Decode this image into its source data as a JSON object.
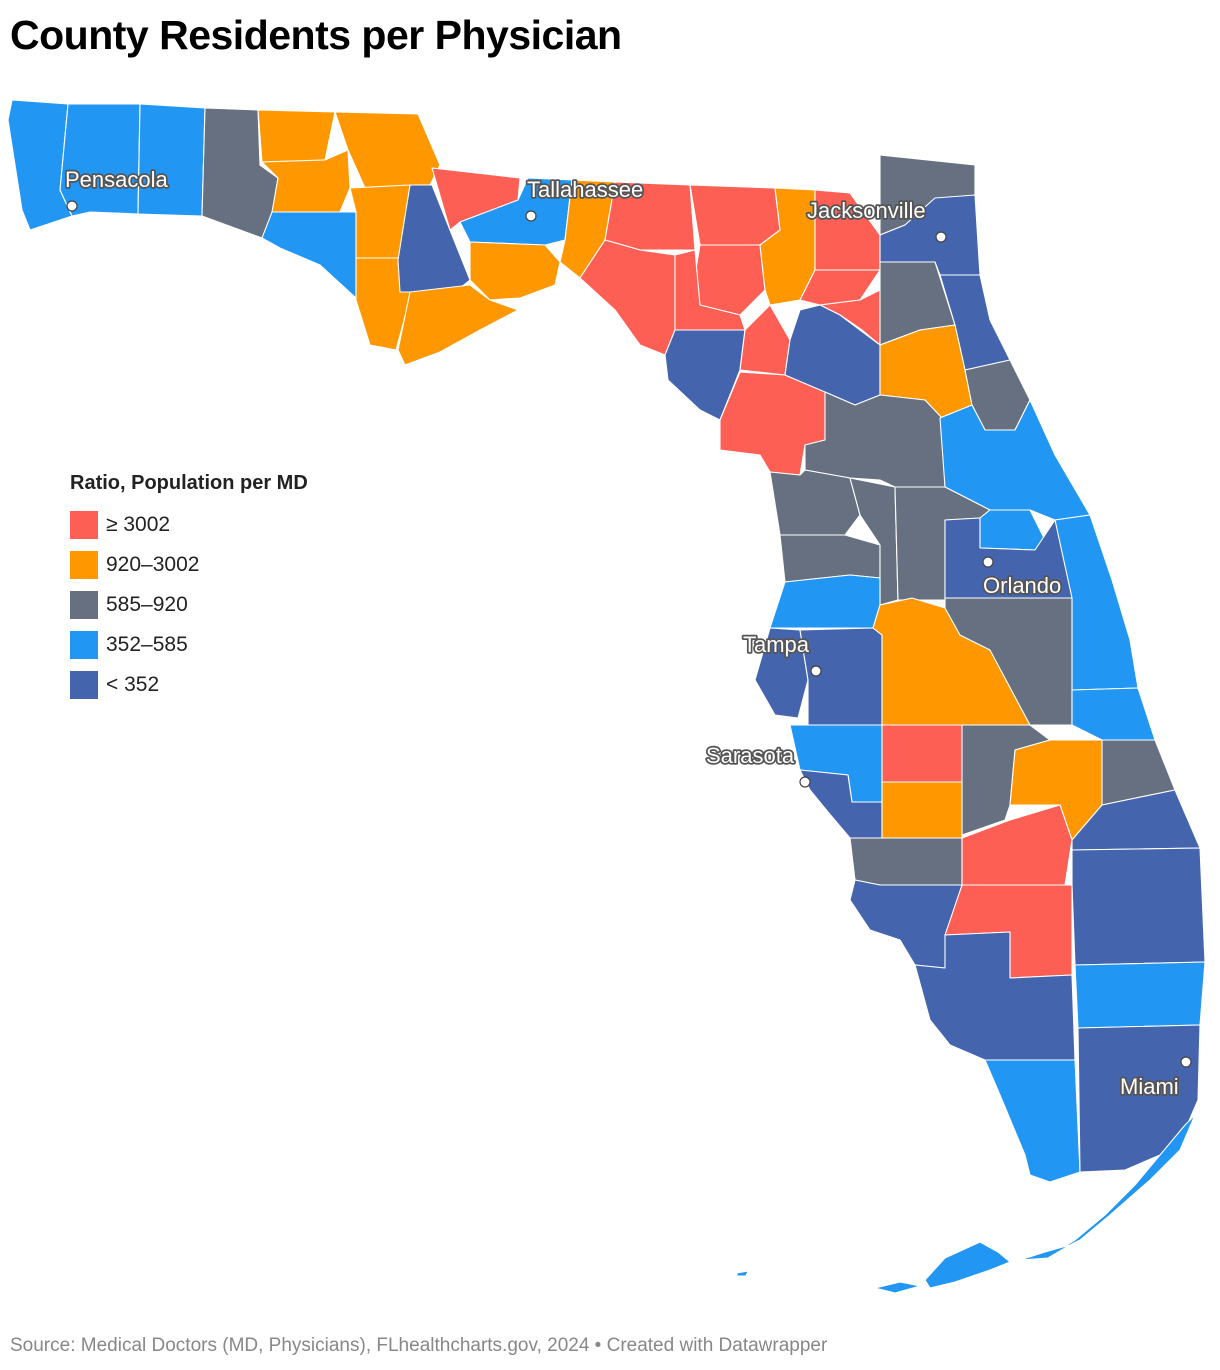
{
  "title": "County Residents per Physician",
  "legend": {
    "title": "Ratio, Population per MD",
    "items": [
      {
        "label": "≥ 3002",
        "color": "#fe5f55"
      },
      {
        "label": "920–3002",
        "color": "#ff9800"
      },
      {
        "label": "585–920",
        "color": "#667080"
      },
      {
        "label": "352–585",
        "color": "#2196f3"
      },
      {
        "label": "< 352",
        "color": "#4464ae"
      }
    ]
  },
  "cities": [
    "Pensacola",
    "Tallahassee",
    "Jacksonville",
    "Orlando",
    "Tampa",
    "Sarasota",
    "Miami"
  ],
  "source": "Source: Medical Doctors (MD, Physicians), FLhealthcharts.gov, 2024 • Created with Datawrapper"
}
